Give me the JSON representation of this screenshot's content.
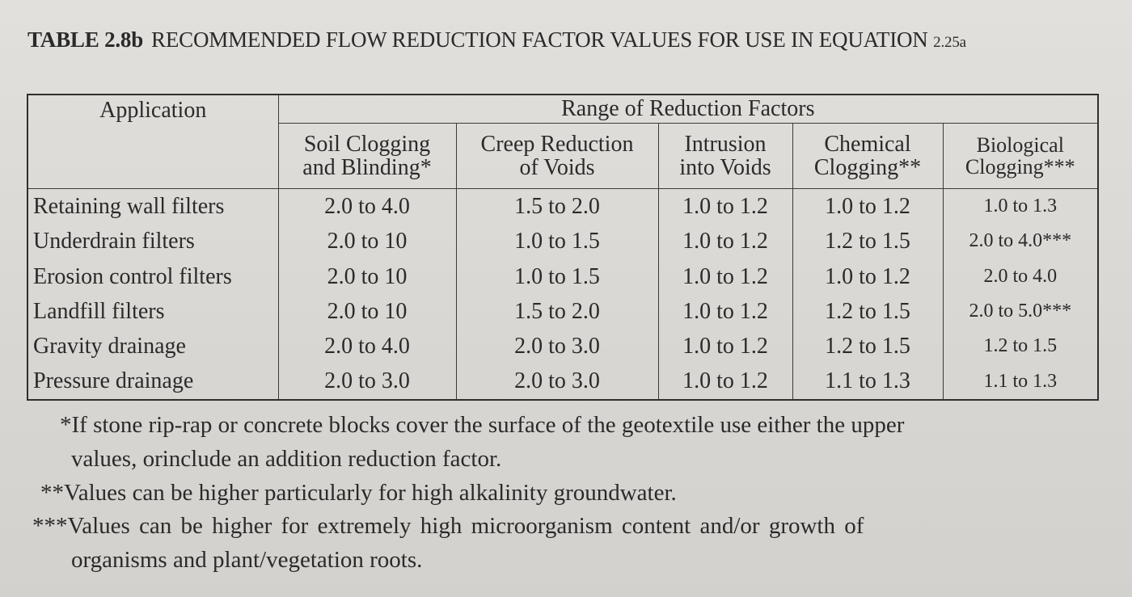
{
  "caption": {
    "label": "TABLE 2.8b",
    "title": "RECOMMENDED FLOW REDUCTION FACTOR VALUES FOR USE IN EQUATION",
    "equation": "2.25a"
  },
  "table": {
    "application_header": "Application",
    "group_header": "Range of Reduction Factors",
    "columns": [
      {
        "line1": "Soil Clogging",
        "line2": "and Blinding*"
      },
      {
        "line1": "Creep Reduction",
        "line2": "of Voids"
      },
      {
        "line1": "Intrusion",
        "line2": "into Voids"
      },
      {
        "line1": "Chemical",
        "line2": "Clogging**"
      },
      {
        "line1": "Biological",
        "line2": "Clogging***"
      }
    ],
    "rows": [
      {
        "application": "Retaining wall filters",
        "values": [
          "2.0 to 4.0",
          "1.5 to 2.0",
          "1.0 to 1.2",
          "1.0 to 1.2",
          "1.0 to 1.3"
        ]
      },
      {
        "application": "Underdrain filters",
        "values": [
          "2.0 to 10",
          "1.0 to 1.5",
          "1.0 to 1.2",
          "1.2 to 1.5",
          "2.0 to 4.0***"
        ]
      },
      {
        "application": "Erosion control filters",
        "values": [
          "2.0 to 10",
          "1.0 to 1.5",
          "1.0 to 1.2",
          "1.0 to 1.2",
          "2.0 to 4.0"
        ]
      },
      {
        "application": "Landfill filters",
        "values": [
          "2.0 to 10",
          "1.5 to 2.0",
          "1.0 to 1.2",
          "1.2 to 1.5",
          "2.0 to 5.0***"
        ]
      },
      {
        "application": "Gravity drainage",
        "values": [
          "2.0 to 4.0",
          "2.0 to 3.0",
          "1.0 to 1.2",
          "1.2 to 1.5",
          "1.2 to 1.5"
        ]
      },
      {
        "application": "Pressure drainage",
        "values": [
          "2.0 to 3.0",
          "2.0 to 3.0",
          "1.0 to 1.2",
          "1.1 to 1.3",
          "1.1 to 1.3"
        ]
      }
    ]
  },
  "notes": [
    {
      "marker": "*",
      "line1": "If stone rip-rap or concrete blocks cover the surface of the geotextile use either the upper",
      "line2": "values, orinclude an addition reduction factor."
    },
    {
      "marker": "**",
      "line1": "Values can be higher particularly for high alkalinity groundwater.",
      "line2": ""
    },
    {
      "marker": "***",
      "line1": "Values can be higher for extremely high microorganism content and/or growth of",
      "line2": "organisms and plant/vegetation roots."
    }
  ]
}
